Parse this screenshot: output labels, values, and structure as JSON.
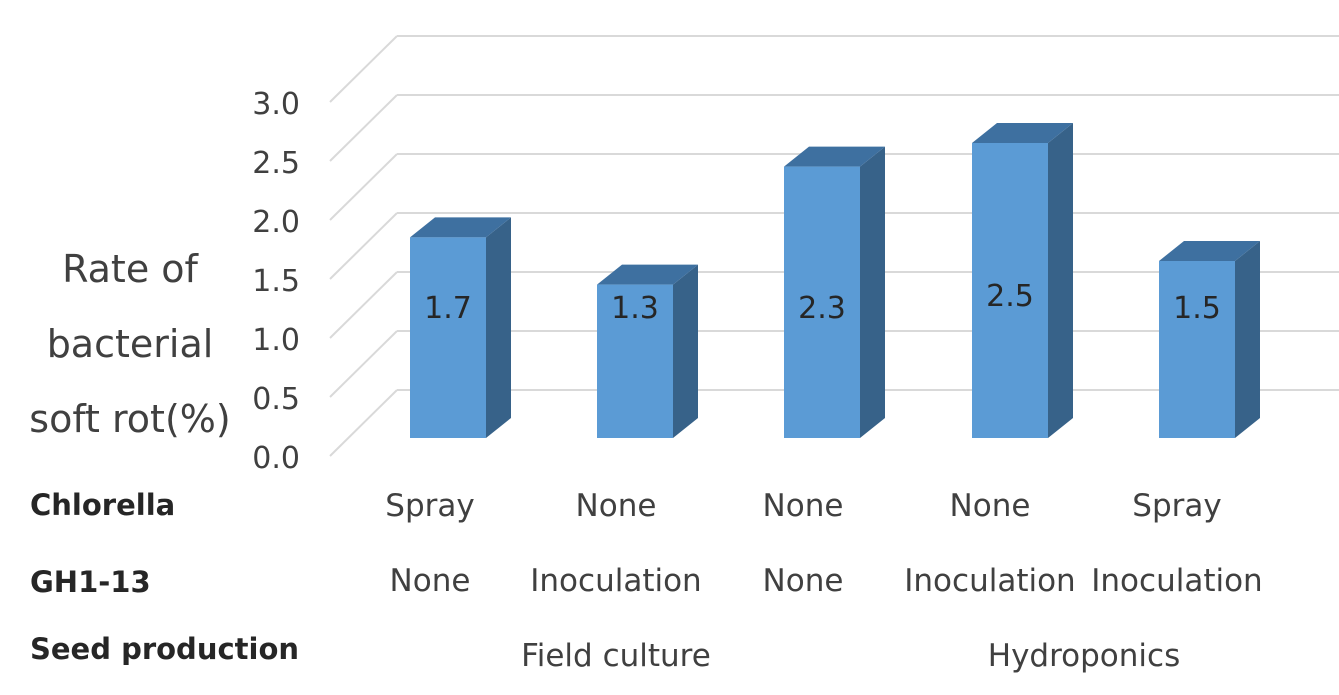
{
  "chart_data": {
    "type": "bar",
    "style": "3d-column",
    "ylabel_lines": [
      "Rate of",
      "bacterial",
      "soft rot(%)"
    ],
    "ylim": [
      0,
      3.0
    ],
    "yticks": [
      "0.0",
      "0.5",
      "1.0",
      "1.5",
      "2.0",
      "2.5",
      "3.0"
    ],
    "grid": true,
    "values": [
      1.7,
      1.3,
      2.3,
      2.5,
      1.5
    ],
    "data_labels": [
      "1.7",
      "1.3",
      "2.3",
      "2.5",
      "1.5"
    ],
    "colors": {
      "front": "#5b9bd5",
      "side": "#376289",
      "top": "#3e70a0",
      "grid": "#d9d9d9"
    },
    "categories_table": {
      "rows": [
        {
          "header": "Chlorella",
          "cells": [
            "Spray",
            "None",
            "None",
            "None",
            "Spray"
          ]
        },
        {
          "header": "GH1-13",
          "cells": [
            "None",
            "Inoculation",
            "None",
            "Inoculation",
            "Inoculation"
          ]
        }
      ],
      "group_row": {
        "header": "Seed production",
        "groups": [
          {
            "label": "Field culture",
            "span": [
              0,
              2
            ]
          },
          {
            "label": "Hydroponics",
            "span": [
              3,
              4
            ]
          }
        ]
      }
    }
  }
}
